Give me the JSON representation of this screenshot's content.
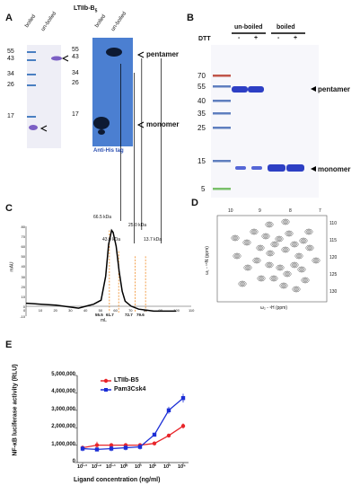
{
  "panelA": {
    "letter": "A",
    "title": "LTIIb-B",
    "title_sub": "5",
    "gel_lane_labels": [
      "boiled",
      "un-boiled"
    ],
    "gel_markers": [
      "55",
      "43",
      "34",
      "26",
      "17"
    ],
    "blot_lane_labels": [
      "boiled",
      "un-boiled"
    ],
    "blot_markers": [
      "55",
      "43",
      "34",
      "26",
      "17"
    ],
    "pentamer_label": "pentamer",
    "monomer_label": "monomer",
    "blot_caption": "Anti-His tag",
    "colors": {
      "gel_band": "#7b5fc4",
      "blot_bg": "#4b7fd1",
      "blot_band": "#0d1a33",
      "marker": "#4a7fc1"
    }
  },
  "panelB": {
    "letter": "B",
    "dtt_label": "DTT",
    "group_labels": [
      "un-boiled",
      "boiled"
    ],
    "lane_signs": [
      "-",
      "+",
      "-",
      "+"
    ],
    "markers": [
      "70",
      "55",
      "40",
      "35",
      "25",
      "15",
      "5"
    ],
    "pentamer_label": "pentamer",
    "monomer_label": "monomer",
    "colors": {
      "band": "#2d3fc4",
      "marker": "#5f7fbf",
      "marker_red": "#c0564a",
      "marker_green": "#7ac06b"
    }
  },
  "panelC": {
    "letter": "C",
    "ylabel": "mAU",
    "xlabel": "mL",
    "mw_labels": [
      "66.5 kDa",
      "43.0 kDa",
      "25.0 kDa",
      "13.7 kDa"
    ],
    "volume_labels": [
      "55.5",
      "61.7",
      "72.7",
      "79.6"
    ],
    "ytick_labels": [
      "80",
      "70",
      "60",
      "50",
      "40",
      "30",
      "20",
      "10",
      "0",
      "-10"
    ],
    "xtick_labels": [
      "0",
      "10",
      "20",
      "30",
      "40",
      "50",
      "60",
      "70",
      "80",
      "90",
      "100",
      "110"
    ],
    "chart_data": {
      "type": "line",
      "x": [
        0,
        5,
        10,
        15,
        20,
        25,
        30,
        35,
        40,
        45,
        50,
        53,
        55,
        57,
        58,
        60,
        62,
        64,
        66,
        70,
        75,
        80,
        85,
        90,
        95,
        100
      ],
      "y": [
        3,
        2.5,
        2,
        1.5,
        1,
        0,
        -1,
        -2,
        0,
        2,
        6,
        30,
        62,
        76,
        74,
        60,
        35,
        15,
        5,
        0,
        -3,
        -4,
        -5,
        -5,
        -5,
        -5
      ],
      "xlim": [
        0,
        110
      ],
      "ylim": [
        -10,
        80
      ],
      "markers_ml": [
        55.5,
        61.7,
        72.7,
        79.6
      ]
    }
  },
  "panelD": {
    "letter": "D",
    "top_ticks": [
      "10",
      "9",
      "8",
      "7"
    ],
    "right_ticks": [
      "110",
      "115",
      "120",
      "125",
      "130"
    ],
    "y_axis_label": "ω₁ - ¹⁵N (ppm)",
    "x_axis_label": "ω₂ - ¹H (ppm)"
  },
  "panelE": {
    "letter": "E",
    "ylabel": "NF-κB luciferase activity (RLU)",
    "xlabel": "Ligand concentration (ng/ml)",
    "ytick_labels": [
      "0",
      "1,000,000",
      "2,000,000",
      "3,000,000",
      "4,000,000",
      "5,000,000"
    ],
    "xtick_labels": [
      "10⁻³",
      "10⁻²",
      "10⁻¹",
      "10⁰",
      "10¹",
      "10²",
      "10³",
      "10⁴"
    ],
    "chart_data": {
      "type": "line",
      "x": [
        "10^-3",
        "10^-2",
        "10^-1",
        "10^0",
        "10^1",
        "10^2",
        "10^3",
        "10^4"
      ],
      "x_log10": [
        -3,
        -2,
        -1,
        0,
        1,
        2,
        3,
        4
      ],
      "ylim": [
        0,
        5000000
      ],
      "series": [
        {
          "name": "LTIIb-B5",
          "color": "#e8252a",
          "values": [
            850000,
            1000000,
            1000000,
            1000000,
            1000000,
            1100000,
            1550000,
            2100000
          ],
          "errors": [
            100000,
            200000,
            100000,
            100000,
            100000,
            80000,
            80000,
            150000
          ]
        },
        {
          "name": "Pam3Csk4",
          "color": "#1b2ed6",
          "values": [
            800000,
            750000,
            800000,
            850000,
            900000,
            1600000,
            3000000,
            3700000
          ],
          "errors": [
            150000,
            100000,
            150000,
            150000,
            150000,
            100000,
            200000,
            250000
          ]
        }
      ]
    }
  }
}
